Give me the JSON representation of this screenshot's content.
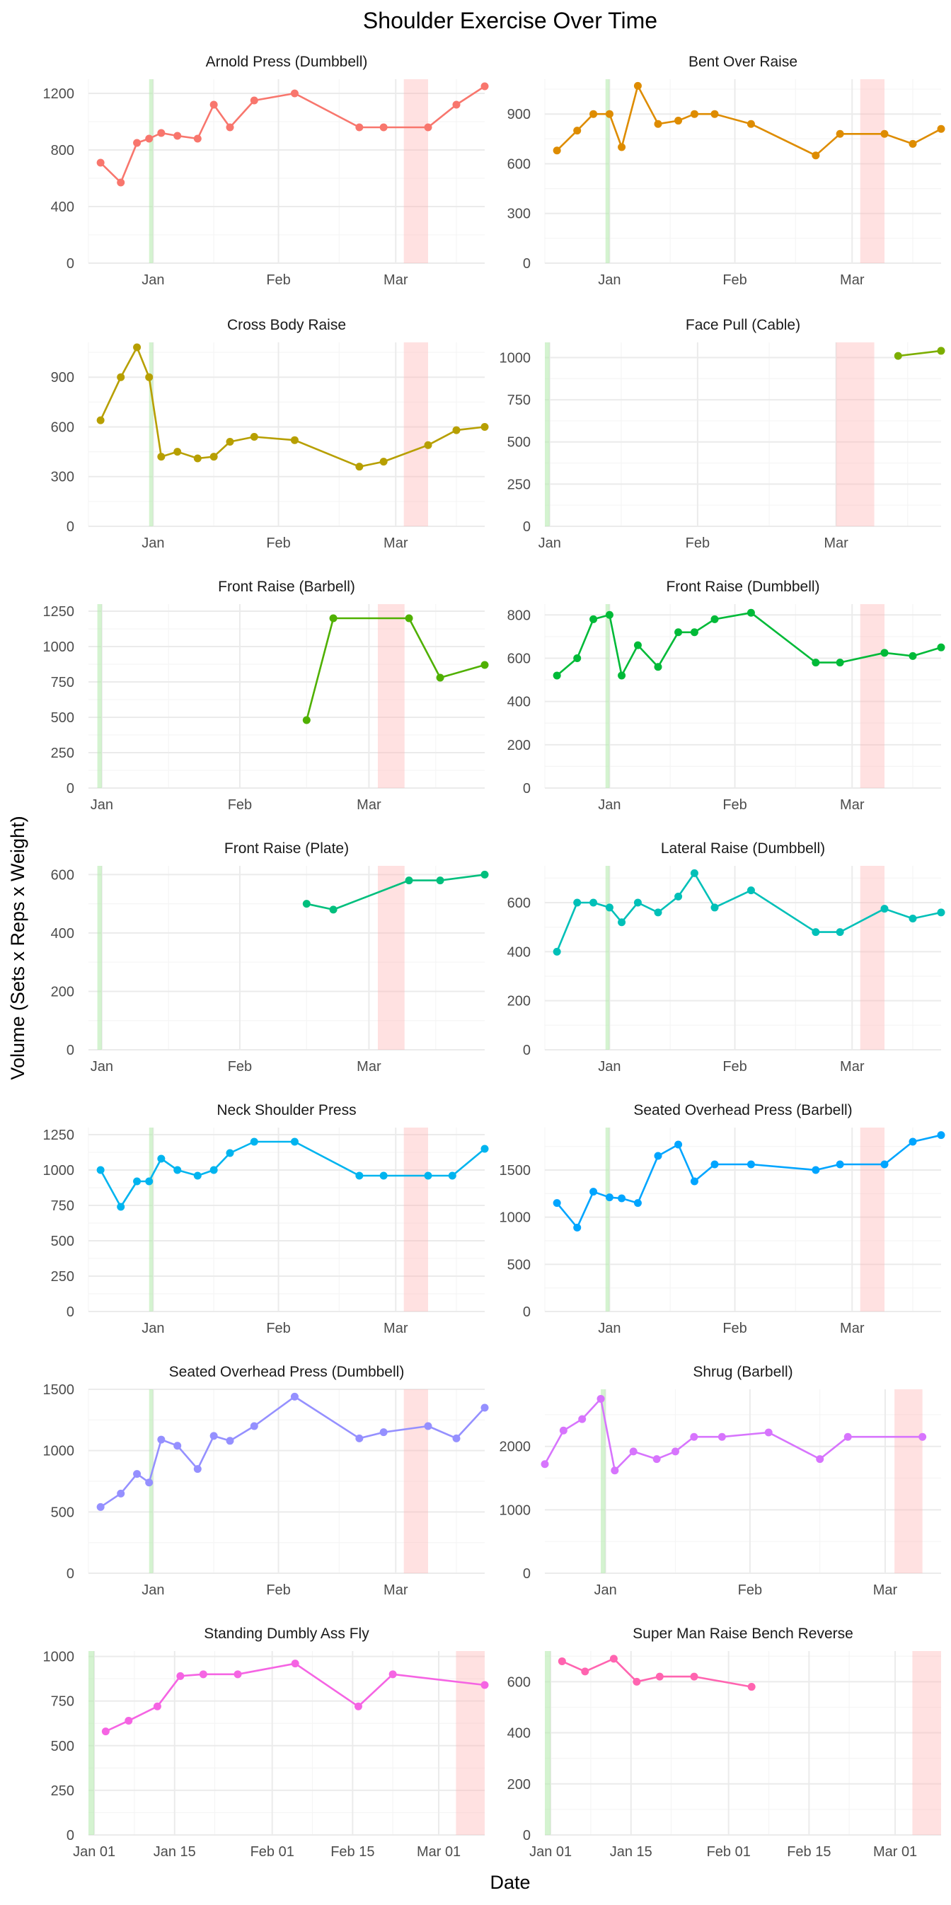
{
  "title": "Shoulder  Exercise Over Time",
  "xlabel": "Date",
  "ylabel": "Volume (Sets x Reps x Weight)",
  "colors": {
    "green_band": "#b7ebb0",
    "red_band": "#ffb3b3",
    "grid_major": "#ebebeb",
    "grid_minor": "#f5f5f5",
    "axis_text": "#4d4d4d"
  },
  "chart_data": [
    {
      "type": "line",
      "title": "Arnold Press (Dumbbell)",
      "color": "#F8766D",
      "ylim": [
        0,
        1300
      ],
      "yticks": [
        0,
        400,
        800,
        1200
      ],
      "xlim": [
        "2023-12-16",
        "2024-03-23"
      ],
      "xticks": [
        [
          "2024-01-01",
          "Jan"
        ],
        [
          "2024-02-01",
          "Feb"
        ],
        [
          "2024-03-01",
          "Mar"
        ]
      ],
      "xminor": [
        "2023-12-16",
        "2024-01-16",
        "2024-02-16",
        "2024-03-16"
      ],
      "green": [
        "2023-12-31",
        "2024-01-01"
      ],
      "red": [
        "2024-03-03",
        "2024-03-09"
      ],
      "x": [
        "2023-12-19",
        "2023-12-24",
        "2023-12-28",
        "2023-12-31",
        "2024-01-03",
        "2024-01-07",
        "2024-01-12",
        "2024-01-16",
        "2024-01-20",
        "2024-01-26",
        "2024-02-05",
        "2024-02-21",
        "2024-02-27",
        "2024-03-09",
        "2024-03-16",
        "2024-03-23"
      ],
      "y": [
        710,
        570,
        850,
        880,
        920,
        900,
        880,
        1120,
        960,
        1150,
        1200,
        960,
        960,
        960,
        1120,
        1250
      ]
    },
    {
      "type": "line",
      "title": "Bent Over Raise",
      "color": "#DE8C00",
      "ylim": [
        0,
        1110
      ],
      "yticks": [
        0,
        300,
        600,
        900
      ],
      "xlim": [
        "2023-12-16",
        "2024-03-23"
      ],
      "xticks": [
        [
          "2024-01-01",
          "Jan"
        ],
        [
          "2024-02-01",
          "Feb"
        ],
        [
          "2024-03-01",
          "Mar"
        ]
      ],
      "xminor": [
        "2023-12-16",
        "2024-01-16",
        "2024-02-16",
        "2024-03-16"
      ],
      "green": [
        "2023-12-31",
        "2024-01-01"
      ],
      "red": [
        "2024-03-03",
        "2024-03-09"
      ],
      "x": [
        "2023-12-19",
        "2023-12-24",
        "2023-12-28",
        "2024-01-01",
        "2024-01-04",
        "2024-01-08",
        "2024-01-13",
        "2024-01-18",
        "2024-01-22",
        "2024-01-27",
        "2024-02-05",
        "2024-02-21",
        "2024-02-27",
        "2024-03-09",
        "2024-03-16",
        "2024-03-23"
      ],
      "y": [
        680,
        800,
        900,
        900,
        700,
        1070,
        840,
        860,
        900,
        900,
        840,
        650,
        780,
        780,
        720,
        810
      ]
    },
    {
      "type": "line",
      "title": "Cross Body Raise",
      "color": "#B79F00",
      "ylim": [
        0,
        1110
      ],
      "yticks": [
        0,
        300,
        600,
        900
      ],
      "xlim": [
        "2023-12-16",
        "2024-03-23"
      ],
      "xticks": [
        [
          "2024-01-01",
          "Jan"
        ],
        [
          "2024-02-01",
          "Feb"
        ],
        [
          "2024-03-01",
          "Mar"
        ]
      ],
      "xminor": [
        "2023-12-16",
        "2024-01-16",
        "2024-02-16",
        "2024-03-16"
      ],
      "green": [
        "2023-12-31",
        "2024-01-01"
      ],
      "red": [
        "2024-03-03",
        "2024-03-09"
      ],
      "x": [
        "2023-12-19",
        "2023-12-24",
        "2023-12-28",
        "2023-12-31",
        "2024-01-03",
        "2024-01-07",
        "2024-01-12",
        "2024-01-16",
        "2024-01-20",
        "2024-01-26",
        "2024-02-05",
        "2024-02-21",
        "2024-02-27",
        "2024-03-09",
        "2024-03-16",
        "2024-03-23"
      ],
      "y": [
        640,
        900,
        1080,
        900,
        420,
        450,
        410,
        420,
        510,
        540,
        520,
        360,
        390,
        490,
        580,
        600
      ]
    },
    {
      "type": "line",
      "title": "Face Pull (Cable)",
      "color": "#7CAE00",
      "ylim": [
        0,
        1090
      ],
      "yticks": [
        0,
        250,
        500,
        750,
        1000
      ],
      "xlim": [
        "2023-12-31",
        "2024-03-23"
      ],
      "xticks": [
        [
          "2024-01-01",
          "Jan"
        ],
        [
          "2024-02-01",
          "Feb"
        ],
        [
          "2024-03-01",
          "Mar"
        ]
      ],
      "xminor": [
        "2024-01-16",
        "2024-02-16",
        "2024-03-16"
      ],
      "green": [
        "2023-12-31",
        "2024-01-01"
      ],
      "red": [
        "2024-03-01",
        "2024-03-09"
      ],
      "x": [
        "2024-03-14",
        "2024-03-23"
      ],
      "y": [
        1010,
        1040
      ]
    },
    {
      "type": "line",
      "title": "Front Raise (Barbell)",
      "color": "#4FB000",
      "ylim": [
        0,
        1300
      ],
      "yticks": [
        0,
        250,
        500,
        750,
        1000,
        1250
      ],
      "xlim": [
        "2023-12-29",
        "2024-03-27"
      ],
      "xticks": [
        [
          "2024-01-01",
          "Jan"
        ],
        [
          "2024-02-01",
          "Feb"
        ],
        [
          "2024-03-01",
          "Mar"
        ]
      ],
      "xminor": [
        "2024-01-16",
        "2024-02-16",
        "2024-03-16"
      ],
      "green": [
        "2023-12-31",
        "2024-01-01"
      ],
      "red": [
        "2024-03-03",
        "2024-03-09"
      ],
      "x": [
        "2024-02-16",
        "2024-02-22",
        "2024-03-10",
        "2024-03-17",
        "2024-03-27"
      ],
      "y": [
        480,
        1200,
        1200,
        780,
        870
      ]
    },
    {
      "type": "line",
      "title": "Front Raise (Dumbbell)",
      "color": "#00BA38",
      "ylim": [
        0,
        850
      ],
      "yticks": [
        0,
        200,
        400,
        600,
        800
      ],
      "xlim": [
        "2023-12-16",
        "2024-03-23"
      ],
      "xticks": [
        [
          "2024-01-01",
          "Jan"
        ],
        [
          "2024-02-01",
          "Feb"
        ],
        [
          "2024-03-01",
          "Mar"
        ]
      ],
      "xminor": [
        "2023-12-16",
        "2024-01-16",
        "2024-02-16",
        "2024-03-16"
      ],
      "green": [
        "2023-12-31",
        "2024-01-01"
      ],
      "red": [
        "2024-03-03",
        "2024-03-09"
      ],
      "x": [
        "2023-12-19",
        "2023-12-24",
        "2023-12-28",
        "2024-01-01",
        "2024-01-04",
        "2024-01-08",
        "2024-01-13",
        "2024-01-18",
        "2024-01-22",
        "2024-01-27",
        "2024-02-05",
        "2024-02-21",
        "2024-02-27",
        "2024-03-09",
        "2024-03-16",
        "2024-03-23"
      ],
      "y": [
        520,
        600,
        780,
        800,
        520,
        660,
        560,
        720,
        720,
        780,
        810,
        580,
        580,
        625,
        610,
        650
      ]
    },
    {
      "type": "line",
      "title": "Front Raise (Plate)",
      "color": "#00BF7D",
      "ylim": [
        0,
        630
      ],
      "yticks": [
        0,
        200,
        400,
        600
      ],
      "xlim": [
        "2023-12-29",
        "2024-03-27"
      ],
      "xticks": [
        [
          "2024-01-01",
          "Jan"
        ],
        [
          "2024-02-01",
          "Feb"
        ],
        [
          "2024-03-01",
          "Mar"
        ]
      ],
      "xminor": [
        "2024-01-16",
        "2024-02-16",
        "2024-03-16"
      ],
      "green": [
        "2023-12-31",
        "2024-01-01"
      ],
      "red": [
        "2024-03-03",
        "2024-03-09"
      ],
      "x": [
        "2024-02-16",
        "2024-02-22",
        "2024-03-10",
        "2024-03-17",
        "2024-03-27"
      ],
      "y": [
        500,
        480,
        580,
        580,
        600
      ]
    },
    {
      "type": "line",
      "title": "Lateral Raise (Dumbbell)",
      "color": "#00C0B8",
      "ylim": [
        0,
        750
      ],
      "yticks": [
        0,
        200,
        400,
        600
      ],
      "xlim": [
        "2023-12-16",
        "2024-03-23"
      ],
      "xticks": [
        [
          "2024-01-01",
          "Jan"
        ],
        [
          "2024-02-01",
          "Feb"
        ],
        [
          "2024-03-01",
          "Mar"
        ]
      ],
      "xminor": [
        "2023-12-16",
        "2024-01-16",
        "2024-02-16",
        "2024-03-16"
      ],
      "green": [
        "2023-12-31",
        "2024-01-01"
      ],
      "red": [
        "2024-03-03",
        "2024-03-09"
      ],
      "x": [
        "2023-12-19",
        "2023-12-24",
        "2023-12-28",
        "2024-01-01",
        "2024-01-04",
        "2024-01-08",
        "2024-01-13",
        "2024-01-18",
        "2024-01-22",
        "2024-01-27",
        "2024-02-05",
        "2024-02-21",
        "2024-02-27",
        "2024-03-09",
        "2024-03-16",
        "2024-03-23"
      ],
      "y": [
        400,
        600,
        600,
        580,
        520,
        600,
        560,
        625,
        720,
        580,
        650,
        480,
        480,
        575,
        535,
        560
      ]
    },
    {
      "type": "line",
      "title": "Neck Shoulder Press",
      "color": "#00B4EF",
      "ylim": [
        0,
        1300
      ],
      "yticks": [
        0,
        250,
        500,
        750,
        1000,
        1250
      ],
      "xlim": [
        "2023-12-16",
        "2024-03-23"
      ],
      "xticks": [
        [
          "2024-01-01",
          "Jan"
        ],
        [
          "2024-02-01",
          "Feb"
        ],
        [
          "2024-03-01",
          "Mar"
        ]
      ],
      "xminor": [
        "2023-12-16",
        "2024-01-16",
        "2024-02-16",
        "2024-03-16"
      ],
      "green": [
        "2023-12-31",
        "2024-01-01"
      ],
      "red": [
        "2024-03-03",
        "2024-03-09"
      ],
      "x": [
        "2023-12-19",
        "2023-12-24",
        "2023-12-28",
        "2023-12-31",
        "2024-01-03",
        "2024-01-07",
        "2024-01-12",
        "2024-01-16",
        "2024-01-20",
        "2024-01-26",
        "2024-02-05",
        "2024-02-21",
        "2024-02-27",
        "2024-03-09",
        "2024-03-15",
        "2024-03-23"
      ],
      "y": [
        1000,
        740,
        920,
        920,
        1080,
        1000,
        960,
        1000,
        1120,
        1200,
        1200,
        960,
        960,
        960,
        960,
        1150
      ]
    },
    {
      "type": "line",
      "title": "Seated Overhead Press (Barbell)",
      "color": "#00A5FF",
      "ylim": [
        0,
        1950
      ],
      "yticks": [
        0,
        500,
        1000,
        1500
      ],
      "xlim": [
        "2023-12-16",
        "2024-03-23"
      ],
      "xticks": [
        [
          "2024-01-01",
          "Jan"
        ],
        [
          "2024-02-01",
          "Feb"
        ],
        [
          "2024-03-01",
          "Mar"
        ]
      ],
      "xminor": [
        "2023-12-16",
        "2024-01-16",
        "2024-02-16",
        "2024-03-16"
      ],
      "green": [
        "2023-12-31",
        "2024-01-01"
      ],
      "red": [
        "2024-03-03",
        "2024-03-09"
      ],
      "x": [
        "2023-12-19",
        "2023-12-24",
        "2023-12-28",
        "2024-01-01",
        "2024-01-04",
        "2024-01-08",
        "2024-01-13",
        "2024-01-18",
        "2024-01-22",
        "2024-01-27",
        "2024-02-05",
        "2024-02-21",
        "2024-02-27",
        "2024-03-09",
        "2024-03-16",
        "2024-03-23"
      ],
      "y": [
        1150,
        890,
        1270,
        1210,
        1200,
        1150,
        1650,
        1770,
        1380,
        1560,
        1560,
        1500,
        1560,
        1560,
        1800,
        1870
      ]
    },
    {
      "type": "line",
      "title": "Seated Overhead Press (Dumbbell)",
      "color": "#9590FF",
      "ylim": [
        0,
        1500
      ],
      "yticks": [
        0,
        500,
        1000,
        1500
      ],
      "xlim": [
        "2023-12-16",
        "2024-03-23"
      ],
      "xticks": [
        [
          "2024-01-01",
          "Jan"
        ],
        [
          "2024-02-01",
          "Feb"
        ],
        [
          "2024-03-01",
          "Mar"
        ]
      ],
      "xminor": [
        "2023-12-16",
        "2024-01-16",
        "2024-02-16",
        "2024-03-16"
      ],
      "green": [
        "2023-12-31",
        "2024-01-01"
      ],
      "red": [
        "2024-03-03",
        "2024-03-09"
      ],
      "x": [
        "2023-12-19",
        "2023-12-24",
        "2023-12-28",
        "2023-12-31",
        "2024-01-03",
        "2024-01-07",
        "2024-01-12",
        "2024-01-16",
        "2024-01-20",
        "2024-01-26",
        "2024-02-05",
        "2024-02-21",
        "2024-02-27",
        "2024-03-09",
        "2024-03-16",
        "2024-03-23"
      ],
      "y": [
        540,
        650,
        810,
        740,
        1090,
        1040,
        850,
        1120,
        1080,
        1200,
        1440,
        1100,
        1150,
        1200,
        1100,
        1350
      ]
    },
    {
      "type": "line",
      "title": "Shrug (Barbell)",
      "color": "#D774FD",
      "ylim": [
        0,
        2900
      ],
      "yticks": [
        0,
        1000,
        2000
      ],
      "xlim": [
        "2023-12-19",
        "2024-03-13"
      ],
      "xticks": [
        [
          "2024-01-01",
          "Jan"
        ],
        [
          "2024-02-01",
          "Feb"
        ],
        [
          "2024-03-01",
          "Mar"
        ]
      ],
      "xminor": [
        "2024-01-16",
        "2024-02-16"
      ],
      "green": [
        "2023-12-31",
        "2024-01-01"
      ],
      "red": [
        "2024-03-03",
        "2024-03-09"
      ],
      "x": [
        "2023-12-19",
        "2023-12-23",
        "2023-12-27",
        "2023-12-31",
        "2024-01-03",
        "2024-01-07",
        "2024-01-12",
        "2024-01-16",
        "2024-01-20",
        "2024-01-26",
        "2024-02-05",
        "2024-02-16",
        "2024-02-22",
        "2024-03-09"
      ],
      "y": [
        1720,
        2250,
        2430,
        2750,
        1620,
        1920,
        1800,
        1920,
        2150,
        2150,
        2220,
        1800,
        2150,
        2150
      ]
    },
    {
      "type": "line",
      "title": "Standing Dumbly Ass Fly",
      "color": "#F564E3",
      "ylim": [
        0,
        1030
      ],
      "yticks": [
        0,
        250,
        500,
        750,
        1000
      ],
      "xlim": [
        "2023-12-31",
        "2024-03-09"
      ],
      "xticks": [
        [
          "2024-01-01",
          "Jan 01"
        ],
        [
          "2024-01-15",
          "Jan 15"
        ],
        [
          "2024-02-01",
          "Feb 01"
        ],
        [
          "2024-02-15",
          "Feb 15"
        ],
        [
          "2024-03-01",
          "Mar 01"
        ]
      ],
      "xminor": [
        "2024-01-08",
        "2024-01-22",
        "2024-02-08",
        "2024-02-22"
      ],
      "green": [
        "2023-12-31",
        "2024-01-01"
      ],
      "red": [
        "2024-03-04",
        "2024-03-09"
      ],
      "x": [
        "2024-01-03",
        "2024-01-07",
        "2024-01-12",
        "2024-01-16",
        "2024-01-20",
        "2024-01-26",
        "2024-02-05",
        "2024-02-16",
        "2024-02-22",
        "2024-03-09"
      ],
      "y": [
        580,
        640,
        720,
        890,
        900,
        900,
        960,
        720,
        900,
        840
      ]
    },
    {
      "type": "line",
      "title": "Super Man Raise Bench Reverse",
      "color": "#FF64B0",
      "ylim": [
        0,
        720
      ],
      "yticks": [
        0,
        200,
        400,
        600
      ],
      "xlim": [
        "2023-12-31",
        "2024-03-09"
      ],
      "xticks": [
        [
          "2024-01-01",
          "Jan 01"
        ],
        [
          "2024-01-15",
          "Jan 15"
        ],
        [
          "2024-02-01",
          "Feb 01"
        ],
        [
          "2024-02-15",
          "Feb 15"
        ],
        [
          "2024-03-01",
          "Mar 01"
        ]
      ],
      "xminor": [
        "2024-01-08",
        "2024-01-22",
        "2024-02-08",
        "2024-02-22"
      ],
      "green": [
        "2023-12-31",
        "2024-01-01"
      ],
      "red": [
        "2024-03-04",
        "2024-03-09"
      ],
      "x": [
        "2024-01-03",
        "2024-01-07",
        "2024-01-12",
        "2024-01-16",
        "2024-01-20",
        "2024-01-26",
        "2024-02-05"
      ],
      "y": [
        680,
        640,
        690,
        600,
        620,
        620,
        580
      ]
    }
  ]
}
